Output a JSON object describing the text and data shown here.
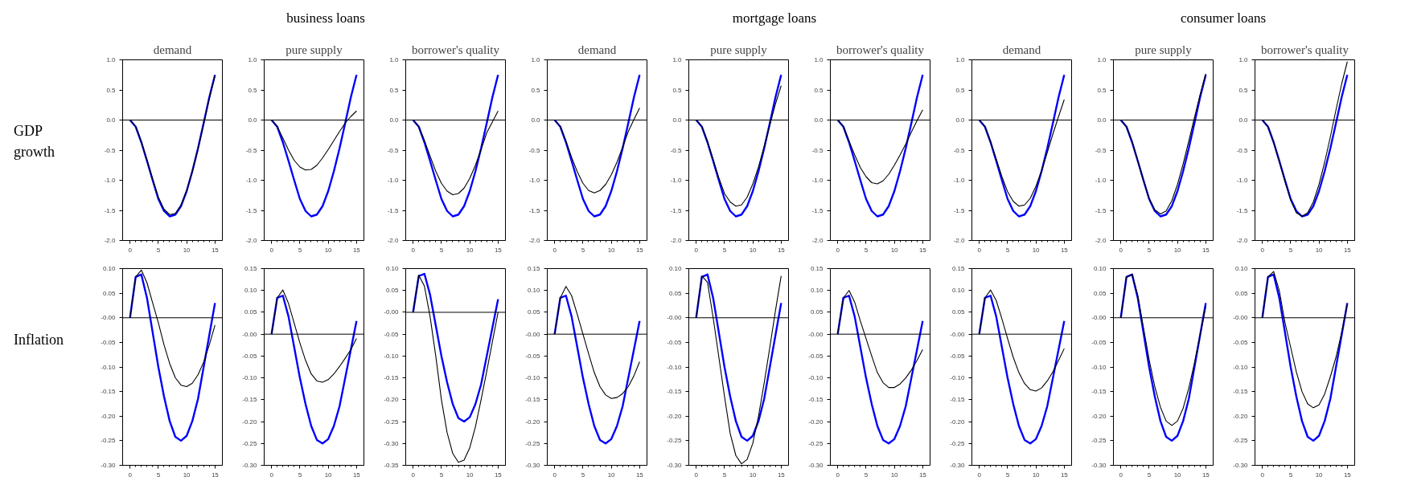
{
  "chart_data": [
    {
      "type": "line",
      "title": "demand",
      "ylabel": "GDP growth",
      "x": [
        0,
        1,
        2,
        3,
        4,
        5,
        6,
        7,
        8,
        9,
        10,
        11,
        12,
        13,
        14,
        15
      ],
      "xlim": [
        -1.3,
        16.3
      ],
      "xticks": [
        0,
        5,
        10,
        15
      ],
      "ylim": [
        -2,
        1
      ],
      "yticks": [
        {
          "value": 1,
          "label": "1.0"
        },
        {
          "value": 0.5,
          "label": "0.5"
        },
        {
          "value": 0,
          "label": "0.0"
        },
        {
          "value": -0.5,
          "label": "-0.5"
        },
        {
          "value": -1,
          "label": "-1.0"
        },
        {
          "value": -1.5,
          "label": "-1.5"
        },
        {
          "value": -2,
          "label": "-2.0"
        }
      ],
      "ref_lines": [
        {
          "axis": "y",
          "value": 0
        }
      ],
      "series": [
        {
          "color": "#0000ff",
          "values": [
            0,
            -0.11,
            -0.37,
            -0.68,
            -1.0,
            -1.31,
            -1.51,
            -1.6,
            -1.57,
            -1.43,
            -1.18,
            -0.85,
            -0.47,
            -0.05,
            0.38,
            0.75
          ]
        },
        {
          "color": "#000000",
          "values": [
            0,
            -0.11,
            -0.36,
            -0.66,
            -0.98,
            -1.28,
            -1.48,
            -1.57,
            -1.55,
            -1.41,
            -1.17,
            -0.85,
            -0.48,
            -0.06,
            0.36,
            0.74
          ]
        }
      ]
    },
    {
      "type": "line",
      "title": "pure supply",
      "subtitle": "business loans",
      "x": [
        0,
        1,
        2,
        3,
        4,
        5,
        6,
        7,
        8,
        9,
        10,
        11,
        12,
        13,
        14,
        15
      ],
      "xlim": [
        -1.3,
        16.3
      ],
      "xticks": [
        0,
        5,
        10,
        15
      ],
      "ylim": [
        -2,
        1
      ],
      "yticks": [
        {
          "value": 1,
          "label": "1.0"
        },
        {
          "value": 0.5,
          "label": "0.5"
        },
        {
          "value": 0,
          "label": "0.0"
        },
        {
          "value": -0.5,
          "label": "-0.5"
        },
        {
          "value": -1,
          "label": "-1.0"
        },
        {
          "value": -1.5,
          "label": "-1.5"
        },
        {
          "value": -2,
          "label": "-2.0"
        }
      ],
      "ref_lines": [
        {
          "axis": "y",
          "value": 0
        }
      ],
      "series": [
        {
          "color": "#0000ff",
          "values": [
            0,
            -0.11,
            -0.37,
            -0.68,
            -1.0,
            -1.31,
            -1.51,
            -1.6,
            -1.57,
            -1.43,
            -1.18,
            -0.85,
            -0.47,
            -0.05,
            0.38,
            0.75
          ]
        },
        {
          "color": "#000000",
          "values": [
            0,
            -0.11,
            -0.3,
            -0.5,
            -0.67,
            -0.78,
            -0.83,
            -0.82,
            -0.75,
            -0.63,
            -0.49,
            -0.34,
            -0.19,
            -0.05,
            0.06,
            0.15
          ]
        }
      ]
    },
    {
      "type": "line",
      "title": "borrower's quality",
      "x": [
        0,
        1,
        2,
        3,
        4,
        5,
        6,
        7,
        8,
        9,
        10,
        11,
        12,
        13,
        14,
        15
      ],
      "xlim": [
        -1.3,
        16.3
      ],
      "xticks": [
        0,
        5,
        10,
        15
      ],
      "ylim": [
        -2,
        1
      ],
      "yticks": [
        {
          "value": 1,
          "label": "1.0"
        },
        {
          "value": 0.5,
          "label": "0.5"
        },
        {
          "value": 0,
          "label": "0.0"
        },
        {
          "value": -0.5,
          "label": "-0.5"
        },
        {
          "value": -1,
          "label": "-1.0"
        },
        {
          "value": -1.5,
          "label": "-1.5"
        },
        {
          "value": -2,
          "label": "-2.0"
        }
      ],
      "ref_lines": [
        {
          "axis": "y",
          "value": 0
        }
      ],
      "series": [
        {
          "color": "#0000ff",
          "values": [
            0,
            -0.11,
            -0.37,
            -0.68,
            -1.0,
            -1.31,
            -1.51,
            -1.6,
            -1.57,
            -1.43,
            -1.18,
            -0.85,
            -0.47,
            -0.05,
            0.38,
            0.75
          ]
        },
        {
          "color": "#000000",
          "values": [
            0,
            -0.11,
            -0.34,
            -0.6,
            -0.85,
            -1.05,
            -1.18,
            -1.24,
            -1.22,
            -1.13,
            -0.97,
            -0.75,
            -0.49,
            -0.21,
            -0.03,
            0.15
          ]
        }
      ]
    },
    {
      "type": "line",
      "title": "demand",
      "x": [
        0,
        1,
        2,
        3,
        4,
        5,
        6,
        7,
        8,
        9,
        10,
        11,
        12,
        13,
        14,
        15
      ],
      "xlim": [
        -1.3,
        16.3
      ],
      "xticks": [
        0,
        5,
        10,
        15
      ],
      "ylim": [
        -2,
        1
      ],
      "yticks": [
        {
          "value": 1,
          "label": "1.0"
        },
        {
          "value": 0.5,
          "label": "0.5"
        },
        {
          "value": 0,
          "label": "0.0"
        },
        {
          "value": -0.5,
          "label": "-0.5"
        },
        {
          "value": -1,
          "label": "-1.0"
        },
        {
          "value": -1.5,
          "label": "-1.5"
        },
        {
          "value": -2,
          "label": "-2.0"
        }
      ],
      "ref_lines": [
        {
          "axis": "y",
          "value": 0
        }
      ],
      "series": [
        {
          "color": "#0000ff",
          "values": [
            0,
            -0.11,
            -0.37,
            -0.68,
            -1.0,
            -1.31,
            -1.51,
            -1.6,
            -1.57,
            -1.43,
            -1.18,
            -0.85,
            -0.47,
            -0.05,
            0.38,
            0.75
          ]
        },
        {
          "color": "#000000",
          "values": [
            0,
            -0.11,
            -0.35,
            -0.62,
            -0.86,
            -1.05,
            -1.17,
            -1.21,
            -1.17,
            -1.07,
            -0.91,
            -0.7,
            -0.45,
            -0.19,
            0.01,
            0.2
          ]
        }
      ]
    },
    {
      "type": "line",
      "title": "pure supply",
      "subtitle": "mortgage loans",
      "x": [
        0,
        1,
        2,
        3,
        4,
        5,
        6,
        7,
        8,
        9,
        10,
        11,
        12,
        13,
        14,
        15
      ],
      "xlim": [
        -1.3,
        16.3
      ],
      "xticks": [
        0,
        5,
        10,
        15
      ],
      "ylim": [
        -2,
        1
      ],
      "yticks": [
        {
          "value": 1,
          "label": "1.0"
        },
        {
          "value": 0.5,
          "label": "0.5"
        },
        {
          "value": 0,
          "label": "0.0"
        },
        {
          "value": -0.5,
          "label": "-0.5"
        },
        {
          "value": -1,
          "label": "-1.0"
        },
        {
          "value": -1.5,
          "label": "-1.5"
        },
        {
          "value": -2,
          "label": "-2.0"
        }
      ],
      "ref_lines": [
        {
          "axis": "y",
          "value": 0
        }
      ],
      "series": [
        {
          "color": "#0000ff",
          "values": [
            0,
            -0.11,
            -0.37,
            -0.68,
            -1.0,
            -1.31,
            -1.51,
            -1.6,
            -1.57,
            -1.43,
            -1.18,
            -0.85,
            -0.47,
            -0.05,
            0.38,
            0.75
          ]
        },
        {
          "color": "#000000",
          "values": [
            0,
            -0.11,
            -0.36,
            -0.66,
            -0.96,
            -1.22,
            -1.36,
            -1.43,
            -1.41,
            -1.28,
            -1.06,
            -0.78,
            -0.44,
            -0.08,
            0.27,
            0.57
          ]
        }
      ]
    },
    {
      "type": "line",
      "title": "borrower's quality",
      "x": [
        0,
        1,
        2,
        3,
        4,
        5,
        6,
        7,
        8,
        9,
        10,
        11,
        12,
        13,
        14,
        15
      ],
      "xlim": [
        -1.3,
        16.3
      ],
      "xticks": [
        0,
        5,
        10,
        15
      ],
      "ylim": [
        -2,
        1
      ],
      "yticks": [
        {
          "value": 1,
          "label": "1.0"
        },
        {
          "value": 0.5,
          "label": "0.5"
        },
        {
          "value": 0,
          "label": "0.0"
        },
        {
          "value": -0.5,
          "label": "-0.5"
        },
        {
          "value": -1,
          "label": "-1.0"
        },
        {
          "value": -1.5,
          "label": "-1.5"
        },
        {
          "value": -2,
          "label": "-2.0"
        }
      ],
      "ref_lines": [
        {
          "axis": "y",
          "value": 0
        }
      ],
      "series": [
        {
          "color": "#0000ff",
          "values": [
            0,
            -0.11,
            -0.37,
            -0.68,
            -1.0,
            -1.31,
            -1.51,
            -1.6,
            -1.57,
            -1.43,
            -1.18,
            -0.85,
            -0.47,
            -0.05,
            0.38,
            0.75
          ]
        },
        {
          "color": "#000000",
          "values": [
            0,
            -0.11,
            -0.35,
            -0.58,
            -0.79,
            -0.94,
            -1.04,
            -1.06,
            -1.01,
            -0.9,
            -0.75,
            -0.58,
            -0.4,
            -0.2,
            -0.01,
            0.17
          ]
        }
      ]
    },
    {
      "type": "line",
      "title": "demand",
      "x": [
        0,
        1,
        2,
        3,
        4,
        5,
        6,
        7,
        8,
        9,
        10,
        11,
        12,
        13,
        14,
        15
      ],
      "xlim": [
        -1.3,
        16.3
      ],
      "xticks": [
        0,
        5,
        10,
        15
      ],
      "ylim": [
        -2,
        1
      ],
      "yticks": [
        {
          "value": 1,
          "label": "1.0"
        },
        {
          "value": 0.5,
          "label": "0.5"
        },
        {
          "value": 0,
          "label": "0.0"
        },
        {
          "value": -0.5,
          "label": "-0.5"
        },
        {
          "value": -1,
          "label": "-1.0"
        },
        {
          "value": -1.5,
          "label": "-1.5"
        },
        {
          "value": -2,
          "label": "-2.0"
        }
      ],
      "ref_lines": [
        {
          "axis": "y",
          "value": 0
        }
      ],
      "series": [
        {
          "color": "#0000ff",
          "values": [
            0,
            -0.11,
            -0.37,
            -0.68,
            -1.0,
            -1.31,
            -1.51,
            -1.6,
            -1.57,
            -1.43,
            -1.18,
            -0.85,
            -0.47,
            -0.05,
            0.38,
            0.75
          ]
        },
        {
          "color": "#000000",
          "values": [
            0,
            -0.11,
            -0.36,
            -0.65,
            -0.94,
            -1.19,
            -1.35,
            -1.43,
            -1.41,
            -1.3,
            -1.1,
            -0.84,
            -0.54,
            -0.23,
            0.06,
            0.34
          ]
        }
      ]
    },
    {
      "type": "line",
      "title": "pure supply",
      "subtitle": "consumer loans",
      "x": [
        0,
        1,
        2,
        3,
        4,
        5,
        6,
        7,
        8,
        9,
        10,
        11,
        12,
        13,
        14,
        15
      ],
      "xlim": [
        -1.3,
        16.3
      ],
      "xticks": [
        0,
        5,
        10,
        15
      ],
      "ylim": [
        -2,
        1
      ],
      "yticks": [
        {
          "value": 1,
          "label": "1.0"
        },
        {
          "value": 0.5,
          "label": "0.5"
        },
        {
          "value": 0,
          "label": "0.0"
        },
        {
          "value": -0.5,
          "label": "-0.5"
        },
        {
          "value": -1,
          "label": "-1.0"
        },
        {
          "value": -1.5,
          "label": "-1.5"
        },
        {
          "value": -2,
          "label": "-2.0"
        }
      ],
      "ref_lines": [
        {
          "axis": "y",
          "value": 0
        }
      ],
      "series": [
        {
          "color": "#0000ff",
          "values": [
            0,
            -0.11,
            -0.37,
            -0.68,
            -1.0,
            -1.31,
            -1.51,
            -1.6,
            -1.57,
            -1.43,
            -1.18,
            -0.85,
            -0.47,
            -0.05,
            0.38,
            0.75
          ]
        },
        {
          "color": "#000000",
          "values": [
            0,
            -0.11,
            -0.36,
            -0.68,
            -1.0,
            -1.3,
            -1.49,
            -1.56,
            -1.51,
            -1.34,
            -1.07,
            -0.73,
            -0.35,
            0.04,
            0.42,
            0.77
          ]
        }
      ]
    },
    {
      "type": "line",
      "title": "borrower's quality",
      "x": [
        0,
        1,
        2,
        3,
        4,
        5,
        6,
        7,
        8,
        9,
        10,
        11,
        12,
        13,
        14,
        15
      ],
      "xlim": [
        -1.3,
        16.3
      ],
      "xticks": [
        0,
        5,
        10,
        15
      ],
      "ylim": [
        -2,
        1
      ],
      "yticks": [
        {
          "value": 1,
          "label": "1.0"
        },
        {
          "value": 0.5,
          "label": "0.5"
        },
        {
          "value": 0,
          "label": "0.0"
        },
        {
          "value": -0.5,
          "label": "-0.5"
        },
        {
          "value": -1,
          "label": "-1.0"
        },
        {
          "value": -1.5,
          "label": "-1.5"
        },
        {
          "value": -2,
          "label": "-2.0"
        }
      ],
      "ref_lines": [
        {
          "axis": "y",
          "value": 0
        }
      ],
      "series": [
        {
          "color": "#0000ff",
          "values": [
            0,
            -0.11,
            -0.37,
            -0.68,
            -1.0,
            -1.31,
            -1.51,
            -1.6,
            -1.57,
            -1.43,
            -1.18,
            -0.85,
            -0.47,
            -0.05,
            0.38,
            0.75
          ]
        },
        {
          "color": "#000000",
          "values": [
            0,
            -0.11,
            -0.37,
            -0.69,
            -1.02,
            -1.33,
            -1.54,
            -1.6,
            -1.54,
            -1.36,
            -1.07,
            -0.7,
            -0.28,
            0.17,
            0.6,
            0.97
          ]
        }
      ]
    },
    {
      "type": "line",
      "ylabel": "Inflation",
      "x": [
        0,
        1,
        2,
        3,
        4,
        5,
        6,
        7,
        8,
        9,
        10,
        11,
        12,
        13,
        14,
        15
      ],
      "xlim": [
        -1.3,
        16.3
      ],
      "xticks": [
        0,
        5,
        10,
        15
      ],
      "ylim": [
        -0.3,
        0.1
      ],
      "yticks": [
        {
          "value": 0.1,
          "label": "0.10"
        },
        {
          "value": 0.05,
          "label": "0.05"
        },
        {
          "value": 0,
          "label": "-0.00"
        },
        {
          "value": -0.05,
          "label": "-0.05"
        },
        {
          "value": -0.1,
          "label": "-0.10"
        },
        {
          "value": -0.15,
          "label": "-0.15"
        },
        {
          "value": -0.2,
          "label": "-0.20"
        },
        {
          "value": -0.25,
          "label": "-0.25"
        },
        {
          "value": -0.3,
          "label": "-0.30"
        }
      ],
      "ref_lines": [
        {
          "axis": "y",
          "value": 0
        }
      ],
      "series": [
        {
          "color": "#0000ff",
          "values": [
            0,
            0.083,
            0.088,
            0.04,
            -0.03,
            -0.1,
            -0.16,
            -0.21,
            -0.242,
            -0.25,
            -0.24,
            -0.21,
            -0.165,
            -0.1,
            -0.035,
            0.03
          ]
        },
        {
          "color": "#000000",
          "values": [
            0,
            0.083,
            0.097,
            0.071,
            0.03,
            -0.01,
            -0.055,
            -0.093,
            -0.122,
            -0.137,
            -0.14,
            -0.133,
            -0.116,
            -0.09,
            -0.055,
            -0.015
          ]
        }
      ]
    },
    {
      "type": "line",
      "x": [
        0,
        1,
        2,
        3,
        4,
        5,
        6,
        7,
        8,
        9,
        10,
        11,
        12,
        13,
        14,
        15
      ],
      "xlim": [
        -1.3,
        16.3
      ],
      "xticks": [
        0,
        5,
        10,
        15
      ],
      "ylim": [
        -0.3,
        0.15
      ],
      "yticks": [
        {
          "value": 0.15,
          "label": "0.15"
        },
        {
          "value": 0.1,
          "label": "0.10"
        },
        {
          "value": 0.05,
          "label": "0.05"
        },
        {
          "value": 0,
          "label": "-0.00"
        },
        {
          "value": -0.05,
          "label": "-0.05"
        },
        {
          "value": -0.1,
          "label": "-0.10"
        },
        {
          "value": -0.15,
          "label": "-0.15"
        },
        {
          "value": -0.2,
          "label": "-0.20"
        },
        {
          "value": -0.25,
          "label": "-0.25"
        },
        {
          "value": -0.3,
          "label": "-0.30"
        }
      ],
      "ref_lines": [
        {
          "axis": "y",
          "value": 0
        }
      ],
      "series": [
        {
          "color": "#0000ff",
          "values": [
            0,
            0.083,
            0.088,
            0.04,
            -0.03,
            -0.1,
            -0.16,
            -0.21,
            -0.242,
            -0.25,
            -0.24,
            -0.21,
            -0.165,
            -0.1,
            -0.035,
            0.03
          ]
        },
        {
          "color": "#000000",
          "values": [
            0,
            0.083,
            0.101,
            0.07,
            0.025,
            -0.02,
            -0.06,
            -0.091,
            -0.107,
            -0.11,
            -0.104,
            -0.091,
            -0.074,
            -0.055,
            -0.035,
            -0.01
          ]
        }
      ]
    },
    {
      "type": "line",
      "x": [
        0,
        1,
        2,
        3,
        4,
        5,
        6,
        7,
        8,
        9,
        10,
        11,
        12,
        13,
        14,
        15
      ],
      "xlim": [
        -1.3,
        16.3
      ],
      "xticks": [
        0,
        5,
        10,
        15
      ],
      "ylim": [
        -0.35,
        0.1
      ],
      "yticks": [
        {
          "value": 0.1,
          "label": "0.10"
        },
        {
          "value": 0.05,
          "label": "0.05"
        },
        {
          "value": 0,
          "label": "-0.00"
        },
        {
          "value": -0.05,
          "label": "-0.05"
        },
        {
          "value": -0.1,
          "label": "-0.10"
        },
        {
          "value": -0.15,
          "label": "-0.15"
        },
        {
          "value": -0.2,
          "label": "-0.20"
        },
        {
          "value": -0.25,
          "label": "-0.25"
        },
        {
          "value": -0.3,
          "label": "-0.30"
        },
        {
          "value": -0.35,
          "label": "-0.35"
        }
      ],
      "ref_lines": [
        {
          "axis": "y",
          "value": 0
        }
      ],
      "series": [
        {
          "color": "#0000ff",
          "values": [
            0,
            0.083,
            0.088,
            0.04,
            -0.03,
            -0.1,
            -0.16,
            -0.21,
            -0.242,
            -0.25,
            -0.24,
            -0.21,
            -0.165,
            -0.1,
            -0.035,
            0.03
          ]
        },
        {
          "color": "#000000",
          "values": [
            0,
            0.085,
            0.06,
            -0.01,
            -0.1,
            -0.2,
            -0.275,
            -0.323,
            -0.343,
            -0.338,
            -0.31,
            -0.262,
            -0.2,
            -0.135,
            -0.067,
            0.0
          ]
        }
      ]
    },
    {
      "type": "line",
      "x": [
        0,
        1,
        2,
        3,
        4,
        5,
        6,
        7,
        8,
        9,
        10,
        11,
        12,
        13,
        14,
        15
      ],
      "xlim": [
        -1.3,
        16.3
      ],
      "xticks": [
        0,
        5,
        10,
        15
      ],
      "ylim": [
        -0.3,
        0.15
      ],
      "yticks": [
        {
          "value": 0.15,
          "label": "0.15"
        },
        {
          "value": 0.1,
          "label": "0.10"
        },
        {
          "value": 0.05,
          "label": "0.05"
        },
        {
          "value": 0,
          "label": "-0.00"
        },
        {
          "value": -0.05,
          "label": "-0.05"
        },
        {
          "value": -0.1,
          "label": "-0.10"
        },
        {
          "value": -0.15,
          "label": "-0.15"
        },
        {
          "value": -0.2,
          "label": "-0.20"
        },
        {
          "value": -0.25,
          "label": "-0.25"
        },
        {
          "value": -0.3,
          "label": "-0.30"
        }
      ],
      "ref_lines": [
        {
          "axis": "y",
          "value": 0
        }
      ],
      "series": [
        {
          "color": "#0000ff",
          "values": [
            0,
            0.083,
            0.088,
            0.04,
            -0.03,
            -0.1,
            -0.16,
            -0.21,
            -0.242,
            -0.25,
            -0.24,
            -0.21,
            -0.165,
            -0.1,
            -0.035,
            0.03
          ]
        },
        {
          "color": "#000000",
          "values": [
            0,
            0.083,
            0.109,
            0.088,
            0.045,
            0.0,
            -0.045,
            -0.088,
            -0.12,
            -0.139,
            -0.147,
            -0.145,
            -0.136,
            -0.12,
            -0.095,
            -0.063
          ]
        }
      ]
    },
    {
      "type": "line",
      "x": [
        0,
        1,
        2,
        3,
        4,
        5,
        6,
        7,
        8,
        9,
        10,
        11,
        12,
        13,
        14,
        15
      ],
      "xlim": [
        -1.3,
        16.3
      ],
      "xticks": [
        0,
        5,
        10,
        15
      ],
      "ylim": [
        -0.3,
        0.1
      ],
      "yticks": [
        {
          "value": 0.1,
          "label": "0.10"
        },
        {
          "value": 0.05,
          "label": "0.05"
        },
        {
          "value": 0,
          "label": "-0.00"
        },
        {
          "value": -0.05,
          "label": "-0.05"
        },
        {
          "value": -0.1,
          "label": "-0.10"
        },
        {
          "value": -0.15,
          "label": "-0.15"
        },
        {
          "value": -0.2,
          "label": "-0.20"
        },
        {
          "value": -0.25,
          "label": "-0.25"
        },
        {
          "value": -0.3,
          "label": "-0.30"
        }
      ],
      "ref_lines": [
        {
          "axis": "y",
          "value": 0
        }
      ],
      "series": [
        {
          "color": "#0000ff",
          "values": [
            0,
            0.083,
            0.088,
            0.04,
            -0.03,
            -0.1,
            -0.16,
            -0.21,
            -0.242,
            -0.25,
            -0.24,
            -0.21,
            -0.165,
            -0.1,
            -0.035,
            0.03
          ]
        },
        {
          "color": "#000000",
          "values": [
            0,
            0.085,
            0.072,
            0.0,
            -0.08,
            -0.16,
            -0.235,
            -0.28,
            -0.297,
            -0.288,
            -0.255,
            -0.2,
            -0.133,
            -0.06,
            0.015,
            0.085
          ]
        }
      ]
    },
    {
      "type": "line",
      "x": [
        0,
        1,
        2,
        3,
        4,
        5,
        6,
        7,
        8,
        9,
        10,
        11,
        12,
        13,
        14,
        15
      ],
      "xlim": [
        -1.3,
        16.3
      ],
      "xticks": [
        0,
        5,
        10,
        15
      ],
      "ylim": [
        -0.3,
        0.15
      ],
      "yticks": [
        {
          "value": 0.15,
          "label": "0.15"
        },
        {
          "value": 0.1,
          "label": "0.10"
        },
        {
          "value": 0.05,
          "label": "0.05"
        },
        {
          "value": 0,
          "label": "-0.00"
        },
        {
          "value": -0.05,
          "label": "-0.05"
        },
        {
          "value": -0.1,
          "label": "-0.10"
        },
        {
          "value": -0.15,
          "label": "-0.15"
        },
        {
          "value": -0.2,
          "label": "-0.20"
        },
        {
          "value": -0.25,
          "label": "-0.25"
        },
        {
          "value": -0.3,
          "label": "-0.30"
        }
      ],
      "ref_lines": [
        {
          "axis": "y",
          "value": 0
        }
      ],
      "series": [
        {
          "color": "#0000ff",
          "values": [
            0,
            0.083,
            0.088,
            0.04,
            -0.03,
            -0.1,
            -0.16,
            -0.21,
            -0.242,
            -0.25,
            -0.24,
            -0.21,
            -0.165,
            -0.1,
            -0.035,
            0.03
          ]
        },
        {
          "color": "#000000",
          "values": [
            0,
            0.083,
            0.1,
            0.073,
            0.03,
            -0.01,
            -0.05,
            -0.088,
            -0.111,
            -0.122,
            -0.122,
            -0.114,
            -0.1,
            -0.082,
            -0.06,
            -0.035
          ]
        }
      ]
    },
    {
      "type": "line",
      "x": [
        0,
        1,
        2,
        3,
        4,
        5,
        6,
        7,
        8,
        9,
        10,
        11,
        12,
        13,
        14,
        15
      ],
      "xlim": [
        -1.3,
        16.3
      ],
      "xticks": [
        0,
        5,
        10,
        15
      ],
      "ylim": [
        -0.3,
        0.15
      ],
      "yticks": [
        {
          "value": 0.15,
          "label": "0.15"
        },
        {
          "value": 0.1,
          "label": "0.10"
        },
        {
          "value": 0.05,
          "label": "0.05"
        },
        {
          "value": 0,
          "label": "-0.00"
        },
        {
          "value": -0.05,
          "label": "-0.05"
        },
        {
          "value": -0.1,
          "label": "-0.10"
        },
        {
          "value": -0.15,
          "label": "-0.15"
        },
        {
          "value": -0.2,
          "label": "-0.20"
        },
        {
          "value": -0.25,
          "label": "-0.25"
        },
        {
          "value": -0.3,
          "label": "-0.30"
        }
      ],
      "ref_lines": [
        {
          "axis": "y",
          "value": 0
        }
      ],
      "series": [
        {
          "color": "#0000ff",
          "values": [
            0,
            0.083,
            0.088,
            0.04,
            -0.03,
            -0.1,
            -0.16,
            -0.21,
            -0.242,
            -0.25,
            -0.24,
            -0.21,
            -0.165,
            -0.1,
            -0.035,
            0.03
          ]
        },
        {
          "color": "#000000",
          "values": [
            0,
            0.083,
            0.101,
            0.077,
            0.035,
            -0.01,
            -0.053,
            -0.088,
            -0.113,
            -0.127,
            -0.13,
            -0.123,
            -0.107,
            -0.086,
            -0.06,
            -0.033
          ]
        }
      ]
    },
    {
      "type": "line",
      "x": [
        0,
        1,
        2,
        3,
        4,
        5,
        6,
        7,
        8,
        9,
        10,
        11,
        12,
        13,
        14,
        15
      ],
      "xlim": [
        -1.3,
        16.3
      ],
      "xticks": [
        0,
        5,
        10,
        15
      ],
      "ylim": [
        -0.3,
        0.1
      ],
      "yticks": [
        {
          "value": 0.1,
          "label": "0.10"
        },
        {
          "value": 0.05,
          "label": "0.05"
        },
        {
          "value": 0,
          "label": "-0.00"
        },
        {
          "value": -0.05,
          "label": "-0.05"
        },
        {
          "value": -0.1,
          "label": "-0.10"
        },
        {
          "value": -0.15,
          "label": "-0.15"
        },
        {
          "value": -0.2,
          "label": "-0.20"
        },
        {
          "value": -0.25,
          "label": "-0.25"
        },
        {
          "value": -0.3,
          "label": "-0.30"
        }
      ],
      "ref_lines": [
        {
          "axis": "y",
          "value": 0
        }
      ],
      "series": [
        {
          "color": "#0000ff",
          "values": [
            0,
            0.083,
            0.088,
            0.04,
            -0.03,
            -0.1,
            -0.16,
            -0.21,
            -0.242,
            -0.25,
            -0.24,
            -0.21,
            -0.165,
            -0.1,
            -0.035,
            0.03
          ]
        },
        {
          "color": "#000000",
          "values": [
            0,
            0.083,
            0.088,
            0.045,
            -0.02,
            -0.085,
            -0.14,
            -0.182,
            -0.21,
            -0.219,
            -0.21,
            -0.184,
            -0.143,
            -0.092,
            -0.035,
            0.023
          ]
        }
      ]
    },
    {
      "type": "line",
      "x": [
        0,
        1,
        2,
        3,
        4,
        5,
        6,
        7,
        8,
        9,
        10,
        11,
        12,
        13,
        14,
        15
      ],
      "xlim": [
        -1.3,
        16.3
      ],
      "xticks": [
        0,
        5,
        10,
        15
      ],
      "ylim": [
        -0.3,
        0.1
      ],
      "yticks": [
        {
          "value": 0.1,
          "label": "0.10"
        },
        {
          "value": 0.05,
          "label": "0.05"
        },
        {
          "value": 0,
          "label": "-0.00"
        },
        {
          "value": -0.05,
          "label": "-0.05"
        },
        {
          "value": -0.1,
          "label": "-0.10"
        },
        {
          "value": -0.15,
          "label": "-0.15"
        },
        {
          "value": -0.2,
          "label": "-0.20"
        },
        {
          "value": -0.25,
          "label": "-0.25"
        },
        {
          "value": -0.3,
          "label": "-0.30"
        }
      ],
      "ref_lines": [
        {
          "axis": "y",
          "value": 0
        }
      ],
      "series": [
        {
          "color": "#0000ff",
          "values": [
            0,
            0.083,
            0.088,
            0.04,
            -0.03,
            -0.1,
            -0.16,
            -0.21,
            -0.242,
            -0.25,
            -0.24,
            -0.21,
            -0.165,
            -0.1,
            -0.035,
            0.03
          ]
        },
        {
          "color": "#000000",
          "values": [
            0,
            0.083,
            0.094,
            0.055,
            -0.01,
            -0.06,
            -0.11,
            -0.15,
            -0.175,
            -0.183,
            -0.177,
            -0.155,
            -0.12,
            -0.08,
            -0.03,
            0.028
          ]
        }
      ]
    }
  ]
}
